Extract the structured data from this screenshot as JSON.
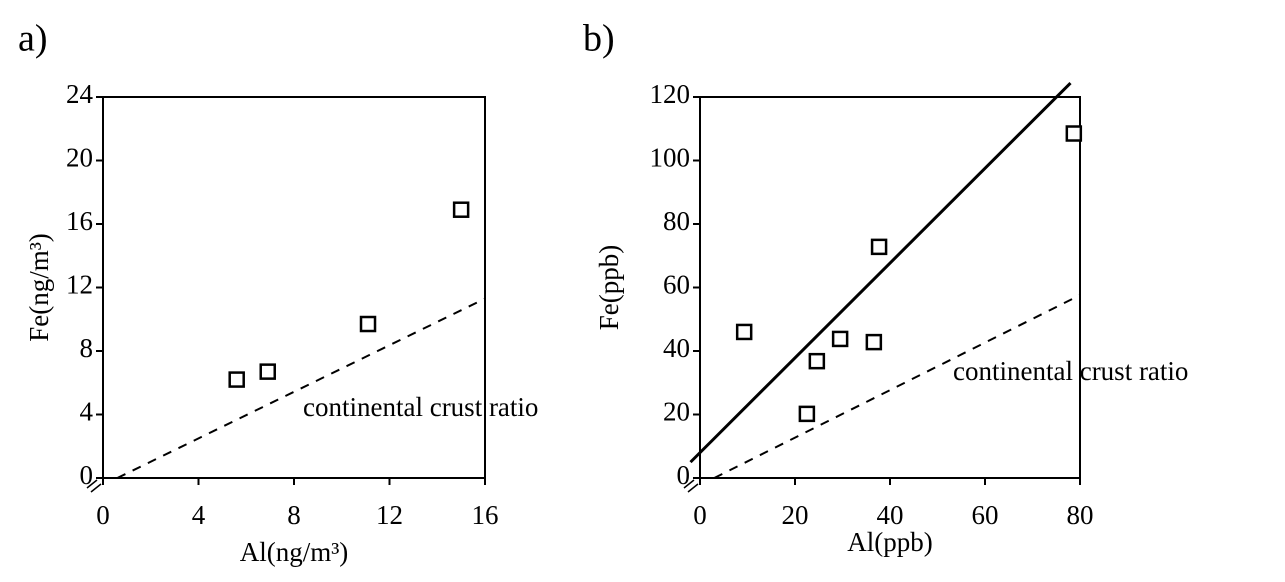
{
  "chart_data": [
    {
      "type": "scatter",
      "panel": "a)",
      "xlabel": "Al(ng/m³)",
      "ylabel": "Fe(ng/m³)",
      "xlim": [
        0,
        16
      ],
      "xticks": [
        0,
        4,
        8,
        12,
        16
      ],
      "ylim": [
        0,
        24
      ],
      "yticks": [
        0,
        4,
        8,
        12,
        16,
        20,
        24
      ],
      "color": "#000000",
      "series": [
        {
          "x": [
            5.6,
            6.9,
            11.1,
            15.0
          ],
          "values": [
            6.2,
            6.7,
            9.7,
            16.9
          ]
        }
      ],
      "lines": [
        {
          "style": "dashed",
          "x": [
            0.6,
            16
          ],
          "y": [
            0,
            11.3
          ]
        }
      ],
      "annotation": "continental crust ratio"
    },
    {
      "type": "scatter",
      "panel": "b)",
      "xlabel": "Al(ppb)",
      "ylabel": "Fe(ppb)",
      "xlim": [
        0,
        80
      ],
      "xticks": [
        0,
        20,
        40,
        60,
        80
      ],
      "ylim": [
        0,
        120
      ],
      "yticks": [
        0,
        20,
        40,
        60,
        80,
        100,
        120
      ],
      "color": "#000000",
      "series": [
        {
          "x": [
            9.3,
            24.6,
            22.5,
            29.5,
            36.6,
            37.7,
            78.7
          ],
          "values": [
            46,
            36.8,
            20.2,
            43.8,
            42.8,
            72.8,
            108.5
          ]
        }
      ],
      "lines": [
        {
          "style": "solid",
          "x": [
            -2,
            78
          ],
          "y": [
            5,
            124.4
          ]
        },
        {
          "style": "dashed",
          "x": [
            3,
            80
          ],
          "y": [
            0,
            57.6
          ]
        }
      ],
      "annotation": "continental crust ratio"
    }
  ]
}
